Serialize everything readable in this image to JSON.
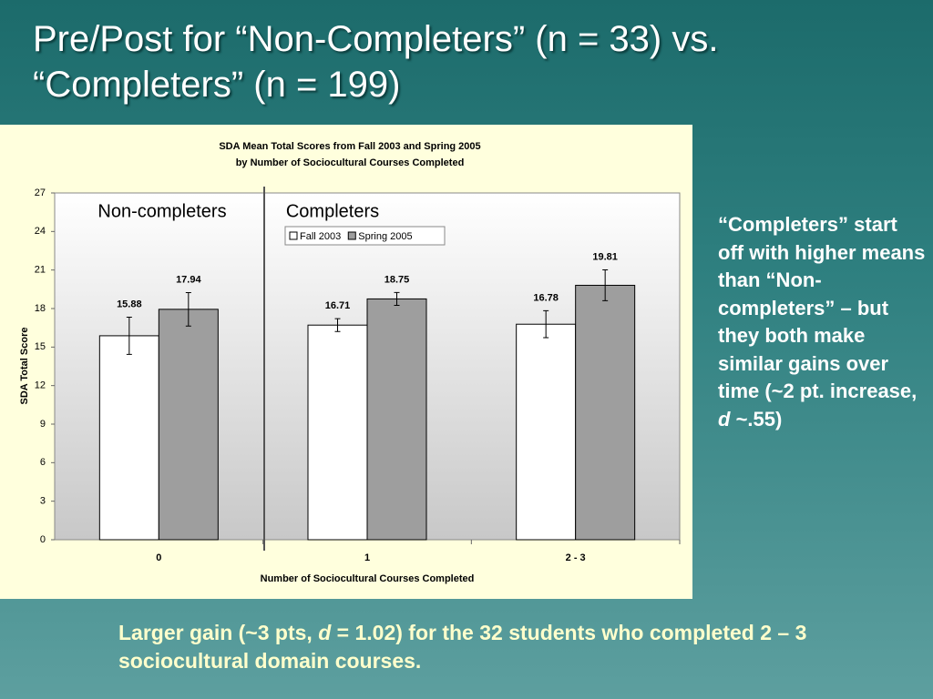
{
  "slide_title": "Pre/Post for “Non-Completers” (n = 33) vs. “Completers” (n = 199)",
  "side_text": [
    "“Completers” start off with higher means than “Non-completers” – but they both make similar gains over time (~2 pt. increase, ",
    "d",
    " ~.55)"
  ],
  "bottom_text": [
    "Larger gain (~3 pts, ",
    "d",
    " = 1.02) for the 32 students who completed 2 – 3 sociocultural domain courses."
  ],
  "chart_data": {
    "type": "bar",
    "title": [
      "SDA Mean Total Scores from Fall 2003 and Spring 2005",
      "by Number of Sociocultural Courses Completed"
    ],
    "x_label": "Number of Sociocultural Courses Completed",
    "y_label": "SDA Total Score",
    "annotations": [
      "Non-completers",
      "Completers"
    ],
    "categories": [
      "0",
      "1",
      "2 - 3"
    ],
    "series": [
      {
        "name": "Fall 2003",
        "color": "#ffffff",
        "values": [
          15.88,
          16.71,
          16.78
        ],
        "errors": [
          1.45,
          0.5,
          1.05
        ]
      },
      {
        "name": "Spring 2005",
        "color": "#9e9e9e",
        "values": [
          17.94,
          18.75,
          19.81
        ],
        "errors": [
          1.3,
          0.5,
          1.2
        ]
      }
    ],
    "ylim": [
      0,
      27
    ],
    "yticks": [
      0,
      3,
      6,
      9,
      12,
      15,
      18,
      21,
      24,
      27
    ]
  }
}
